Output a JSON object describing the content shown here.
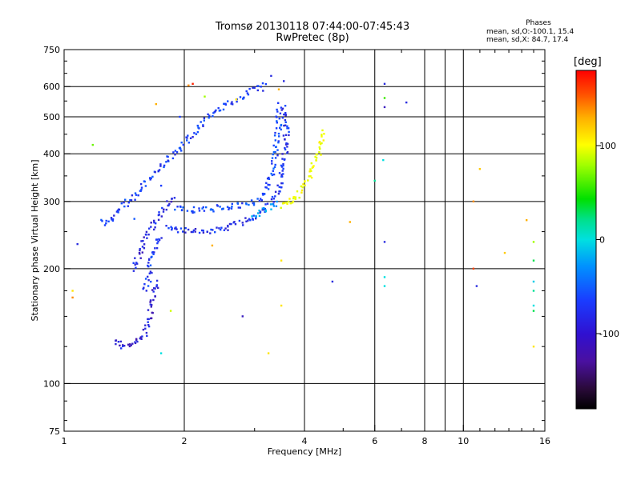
{
  "header": {
    "title": "Tromsø 20130118 07:44:00-07:45:43",
    "subtitle": "RwPretec (8p)"
  },
  "phases": {
    "title": "Phases",
    "o_mode": "mean, sd,O:-100.1, 15.4",
    "x_mode": "mean, sd,X:  84.7, 17.4"
  },
  "colorbar": {
    "unit": "[deg]",
    "range": [
      -180,
      180
    ],
    "ticks": [
      100,
      0,
      -100
    ],
    "colormap": "rainbow (black-purple-blue-cyan-green-yellow-red)"
  },
  "chart_data": {
    "type": "scatter",
    "xlabel": "Frequency [MHz]",
    "ylabel": "Stationary phase Virtual Height [km]",
    "xscale": "log",
    "yscale": "log",
    "xlim": [
      1,
      16
    ],
    "ylim": [
      75,
      750
    ],
    "x_ticks": [
      1,
      2,
      4,
      6,
      8,
      10,
      16
    ],
    "y_ticks": [
      75,
      100,
      200,
      300,
      400,
      500,
      600,
      750
    ],
    "grid": true,
    "traces": [
      {
        "name": "",
        "phase": -115,
        "points": [
          [
            1.35,
            130
          ],
          [
            1.38,
            127
          ],
          [
            1.42,
            125
          ],
          [
            1.46,
            126
          ],
          [
            1.5,
            128
          ],
          [
            1.54,
            130
          ],
          [
            1.58,
            134
          ],
          [
            1.62,
            140
          ],
          [
            1.64,
            150
          ],
          [
            1.66,
            160
          ],
          [
            1.68,
            170
          ],
          [
            1.7,
            180
          ],
          [
            1.72,
            188
          ]
        ]
      },
      {
        "name": "",
        "phase": -110,
        "points": [
          [
            1.48,
            200
          ],
          [
            1.52,
            210
          ],
          [
            1.56,
            225
          ],
          [
            1.6,
            240
          ],
          [
            1.65,
            255
          ],
          [
            1.7,
            268
          ],
          [
            1.75,
            280
          ],
          [
            1.8,
            292
          ],
          [
            1.85,
            300
          ],
          [
            1.9,
            305
          ]
        ]
      },
      {
        "name": "",
        "phase": -100,
        "points": [
          [
            1.6,
            175
          ],
          [
            1.62,
            185
          ],
          [
            1.64,
            200
          ],
          [
            1.66,
            215
          ],
          [
            1.7,
            230
          ],
          [
            1.75,
            245
          ]
        ]
      },
      {
        "name": "",
        "phase": -105,
        "points": [
          [
            1.8,
            258
          ],
          [
            1.9,
            255
          ],
          [
            2.0,
            252
          ],
          [
            2.1,
            250
          ],
          [
            2.2,
            250
          ],
          [
            2.4,
            252
          ],
          [
            2.6,
            258
          ],
          [
            2.8,
            265
          ],
          [
            3.0,
            275
          ],
          [
            3.2,
            288
          ],
          [
            3.35,
            300
          ],
          [
            3.45,
            320
          ],
          [
            3.5,
            350
          ],
          [
            3.55,
            380
          ],
          [
            3.6,
            420
          ],
          [
            3.6,
            480
          ],
          [
            3.55,
            540
          ]
        ]
      },
      {
        "name": "",
        "phase": -95,
        "points": [
          [
            1.9,
            290
          ],
          [
            2.1,
            285
          ],
          [
            2.3,
            285
          ],
          [
            2.5,
            290
          ],
          [
            2.7,
            292
          ],
          [
            2.9,
            295
          ],
          [
            3.1,
            305
          ],
          [
            3.25,
            330
          ],
          [
            3.35,
            370
          ],
          [
            3.4,
            420
          ],
          [
            3.45,
            480
          ],
          [
            3.45,
            540
          ]
        ]
      },
      {
        "name": "",
        "phase": -60,
        "points": [
          [
            3.0,
            270
          ],
          [
            3.1,
            278
          ],
          [
            3.2,
            285
          ],
          [
            3.3,
            292
          ],
          [
            3.4,
            298
          ]
        ]
      },
      {
        "name": "",
        "phase": 95,
        "points": [
          [
            3.5,
            292
          ],
          [
            3.6,
            295
          ],
          [
            3.7,
            300
          ],
          [
            3.8,
            305
          ],
          [
            3.9,
            318
          ],
          [
            4.0,
            330
          ],
          [
            4.1,
            345
          ],
          [
            4.2,
            370
          ],
          [
            4.3,
            395
          ],
          [
            4.4,
            425
          ],
          [
            4.5,
            460
          ]
        ]
      },
      {
        "name": "",
        "phase": -100,
        "points": [
          [
            1.25,
            265
          ],
          [
            1.28,
            262
          ],
          [
            2.4,
            520
          ],
          [
            2.5,
            530
          ],
          [
            2.6,
            540
          ],
          [
            2.8,
            560
          ],
          [
            3.0,
            590
          ],
          [
            3.2,
            610
          ]
        ]
      }
    ],
    "scattered_points": [
      {
        "x": 1.08,
        "y": 232,
        "phase": -110
      },
      {
        "x": 1.18,
        "y": 422,
        "phase": 40
      },
      {
        "x": 1.05,
        "y": 175,
        "phase": 110
      },
      {
        "x": 1.05,
        "y": 168,
        "phase": 140
      },
      {
        "x": 1.5,
        "y": 270,
        "phase": -90
      },
      {
        "x": 1.7,
        "y": 540,
        "phase": 130
      },
      {
        "x": 1.75,
        "y": 330,
        "phase": -100
      },
      {
        "x": 1.85,
        "y": 155,
        "phase": 80
      },
      {
        "x": 1.75,
        "y": 120,
        "phase": -30
      },
      {
        "x": 1.95,
        "y": 500,
        "phase": -100
      },
      {
        "x": 2.05,
        "y": 604,
        "phase": 140
      },
      {
        "x": 2.1,
        "y": 610,
        "phase": 170
      },
      {
        "x": 2.25,
        "y": 565,
        "phase": 60
      },
      {
        "x": 2.35,
        "y": 230,
        "phase": 130
      },
      {
        "x": 2.7,
        "y": 555,
        "phase": 110
      },
      {
        "x": 2.8,
        "y": 150,
        "phase": -120
      },
      {
        "x": 3.15,
        "y": 585,
        "phase": -110
      },
      {
        "x": 3.3,
        "y": 640,
        "phase": -110
      },
      {
        "x": 3.55,
        "y": 620,
        "phase": -110
      },
      {
        "x": 3.45,
        "y": 590,
        "phase": 130
      },
      {
        "x": 3.5,
        "y": 210,
        "phase": 110
      },
      {
        "x": 3.5,
        "y": 160,
        "phase": 110
      },
      {
        "x": 3.25,
        "y": 120,
        "phase": 110
      },
      {
        "x": 4.7,
        "y": 185,
        "phase": -110
      },
      {
        "x": 5.2,
        "y": 265,
        "phase": 130
      },
      {
        "x": 6.0,
        "y": 340,
        "phase": -20
      },
      {
        "x": 6.3,
        "y": 385,
        "phase": -30
      },
      {
        "x": 6.35,
        "y": 610,
        "phase": -110
      },
      {
        "x": 6.35,
        "y": 560,
        "phase": 20
      },
      {
        "x": 6.35,
        "y": 530,
        "phase": -120
      },
      {
        "x": 6.35,
        "y": 235,
        "phase": -110
      },
      {
        "x": 6.35,
        "y": 190,
        "phase": -30
      },
      {
        "x": 6.35,
        "y": 180,
        "phase": -30
      },
      {
        "x": 7.2,
        "y": 545,
        "phase": -110
      },
      {
        "x": 10.6,
        "y": 200,
        "phase": 160
      },
      {
        "x": 10.8,
        "y": 180,
        "phase": -110
      },
      {
        "x": 11.0,
        "y": 365,
        "phase": 120
      },
      {
        "x": 10.6,
        "y": 300,
        "phase": 140
      },
      {
        "x": 12.7,
        "y": 220,
        "phase": 120
      },
      {
        "x": 14.4,
        "y": 268,
        "phase": 130
      },
      {
        "x": 15.0,
        "y": 235,
        "phase": 60
      },
      {
        "x": 15.0,
        "y": 210,
        "phase": -10
      },
      {
        "x": 15.0,
        "y": 185,
        "phase": -40
      },
      {
        "x": 15.0,
        "y": 175,
        "phase": -20
      },
      {
        "x": 15.0,
        "y": 160,
        "phase": -30
      },
      {
        "x": 15.0,
        "y": 155,
        "phase": -10
      },
      {
        "x": 15.0,
        "y": 125,
        "phase": 110
      }
    ]
  }
}
